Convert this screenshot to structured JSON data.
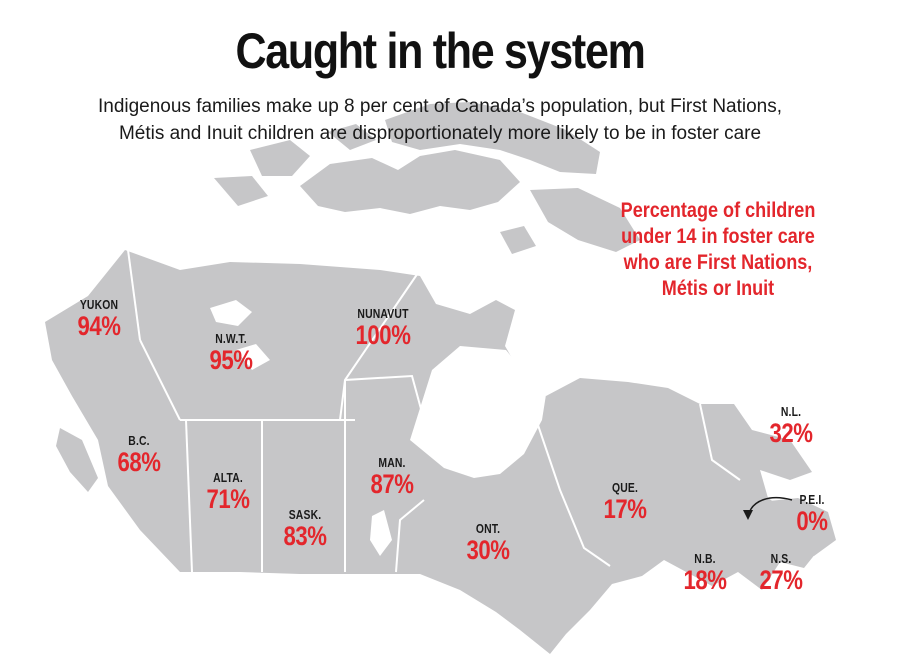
{
  "title": "Caught in the system",
  "subtitle_line1": "Indigenous families make up 8 per cent of Canada’s population, but First Nations,",
  "subtitle_line2": "Métis and Inuit children are disproportionately more likely to be in foster care",
  "legend_lines": [
    "Percentage of children",
    "under 14 in foster care",
    "who are First Nations,",
    "Métis or Inuit"
  ],
  "colors": {
    "accent": "#e3262c",
    "land": "#c6c6c8",
    "borders": "#ffffff",
    "text": "#1a1a1a"
  },
  "regions": [
    {
      "abbr": "YUKON",
      "value": "94%"
    },
    {
      "abbr": "N.W.T.",
      "value": "95%"
    },
    {
      "abbr": "NUNAVUT",
      "value": "100%"
    },
    {
      "abbr": "B.C.",
      "value": "68%"
    },
    {
      "abbr": "ALTA.",
      "value": "71%"
    },
    {
      "abbr": "SASK.",
      "value": "83%"
    },
    {
      "abbr": "MAN.",
      "value": "87%"
    },
    {
      "abbr": "ONT.",
      "value": "30%"
    },
    {
      "abbr": "QUE.",
      "value": "17%"
    },
    {
      "abbr": "N.L.",
      "value": "32%"
    },
    {
      "abbr": "P.E.I.",
      "value": "0%"
    },
    {
      "abbr": "N.B.",
      "value": "18%"
    },
    {
      "abbr": "N.S.",
      "value": "27%"
    }
  ]
}
